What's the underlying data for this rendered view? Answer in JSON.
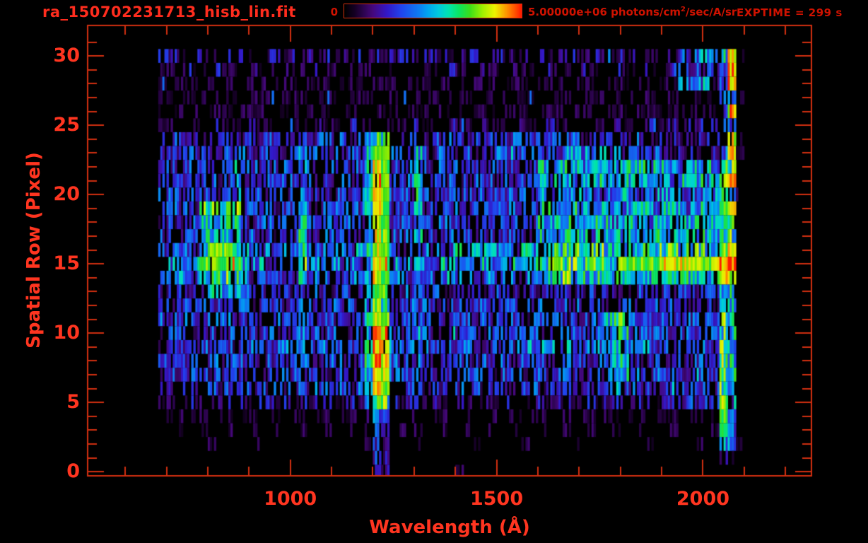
{
  "title": "ra_150702231713_hisb_lin.fit",
  "colors": {
    "background": "#000000",
    "title_text": "#ff2d1e",
    "label_text": "#cf1200",
    "tick_text": "#ff3520",
    "axis_line": "#d22f10"
  },
  "colorbar": {
    "min_label": "0",
    "max_label_prefix": "5.00000e+06 photons/cm",
    "max_label_sup": "2",
    "max_label_suffix": "/sec/A/sr",
    "exptime": "EXPTIME = 299 s"
  },
  "chart_data": {
    "type": "heatmap",
    "title": "ra_150702231713_hisb_lin.fit",
    "xlabel": "Wavelength (Å)",
    "ylabel": "Spatial Row (Pixel)",
    "legend_position": "top-colorbar",
    "grid_lines": false,
    "value_scale": {
      "min": 0,
      "max": 5000000,
      "units": "photons/cm2/sec/A/sr",
      "digit_scale": "0-9 maps 0..5e6 (linear)"
    },
    "x_axis": {
      "lambda_min": 509,
      "lambda_max": 2263,
      "major_ticks": [
        1000,
        1500,
        2000
      ],
      "major_tick_labels": [
        "1000",
        "1500",
        "2000"
      ],
      "minor_tick_step": 100,
      "minor_tick_min": 600,
      "minor_tick_max": 2200
    },
    "y_axis": {
      "row_min": -0.3,
      "row_max": 32.2,
      "major_ticks": [
        0,
        5,
        10,
        15,
        20,
        25,
        30
      ],
      "major_tick_labels": [
        "0",
        "5",
        "10",
        "15",
        "20",
        "25",
        "30"
      ],
      "minor_tick_step": 1,
      "minor_tick_min": 0,
      "minor_tick_max": 31
    },
    "colormap_stops": [
      [
        0.0,
        "#000000"
      ],
      [
        0.06,
        "#160026"
      ],
      [
        0.16,
        "#46087c"
      ],
      [
        0.24,
        "#3318c8"
      ],
      [
        0.32,
        "#2144ee"
      ],
      [
        0.42,
        "#0d7cf2"
      ],
      [
        0.47,
        "#00a4f0"
      ],
      [
        0.53,
        "#00c9e0"
      ],
      [
        0.59,
        "#00e4ae"
      ],
      [
        0.65,
        "#0ce45e"
      ],
      [
        0.71,
        "#3cdf1a"
      ],
      [
        0.78,
        "#9ef000"
      ],
      [
        0.85,
        "#eef200"
      ],
      [
        0.92,
        "#ff9000"
      ],
      [
        0.97,
        "#ff4a00"
      ],
      [
        1.0,
        "#ff1a00"
      ]
    ],
    "features": [
      "bright Lyman-alpha emission column near 1200-1230 A, rows 5-24, orange/red core",
      "secondary emission columns near 1020 A, 1300 A and 1790 A",
      "bright continuum band rows 14-16 from 1600-2080 A, yellow/orange near 2000 A",
      "saturated green/red detector edge column near 2050-2080 A",
      "sparse violet noise rows 25-30 and rows 0-4"
    ],
    "grid": {
      "lambda_start": 680,
      "bin_width": 20,
      "n_bins": 72,
      "n_rows": 31,
      "row_order": "top_to_bottom_rows_30_to_0",
      "rows_top_to_bottom": [
        [
          "222122212221",
          "222122212221",
          "222122212221",
          "222122212221",
          "222122212221",
          "222444435810"
        ],
        [
          "110211021102",
          "110211021102",
          "110211021102",
          "110211021102",
          "110211021102",
          "113333323900"
        ],
        [
          "101110111011",
          "101110111011",
          "101110111011",
          "101110111011",
          "101110111011",
          "111444424900"
        ],
        [
          "110111011101",
          "110111011101",
          "110111011101",
          "110111011101",
          "110111011101",
          "111111123410"
        ],
        [
          "101110111011",
          "101110111011",
          "101110111011",
          "101110111011",
          "101110111011",
          "111111113800"
        ],
        [
          "110211021102",
          "110211021102",
          "110211021102",
          "110211021102",
          "110211021102",
          "122222223400"
        ],
        [
          "22322",
          "23232",
          "2323232",
          "3",
          "2332323",
          "4",
          "6",
          "6",
          "323",
          "4",
          "2323",
          "32323",
          "3333333333",
          "222322232",
          "22222222",
          "3",
          "8",
          "1",
          "0"
        ],
        [
          "23232",
          "33233",
          "3233323",
          "4",
          "3323233",
          "5",
          "7",
          "7",
          "333",
          "5",
          "3233",
          "33233",
          "444344434443444",
          "33333",
          "2222222",
          "4",
          "8",
          "1",
          "0"
        ],
        [
          "23233",
          "3233",
          "5",
          "3323332",
          "4",
          "3233323",
          "5",
          "8",
          "7",
          "333",
          "4",
          "323332333",
          "33333",
          "5455545554555455545554",
          "6",
          "6",
          "00"
        ],
        [
          "32332",
          "3323",
          "5",
          "2333233",
          "4",
          "3332333",
          "5",
          "9",
          "7",
          "333",
          "5",
          "233323332",
          "33333",
          "5455455554554555455545",
          "6",
          "9",
          "00"
        ],
        [
          "23323",
          "3233",
          "4",
          "3233323",
          "5",
          "3323333",
          "5",
          "9",
          "7",
          "333",
          "5",
          "323333233",
          "33333",
          "444444444",
          "55",
          "44444444444",
          "5",
          "5",
          "10"
        ],
        [
          "23332",
          "66666",
          "3333233",
          "5",
          "3233333",
          "5",
          "9",
          "7",
          "333",
          "5",
          "233332333",
          "33333",
          "5545554555455545554555",
          "7",
          "8",
          "00"
        ],
        [
          "23233",
          "55555",
          "3233332",
          "5",
          "3332333",
          "5",
          "8",
          "7",
          "333",
          "5",
          "323333233",
          "33333",
          "5455545554555455455545",
          "6",
          "6",
          "00"
        ],
        [
          "33233",
          "55555",
          "2333233",
          "5",
          "3233332",
          "5",
          "8",
          "7",
          "333",
          "5",
          "233323333",
          "33333",
          "5545554555455554555455",
          "6",
          "6",
          "00"
        ],
        [
          "34343",
          "67776",
          "4434343",
          "5",
          "4344434",
          "5",
          "8",
          "7",
          "434",
          "4",
          "4344",
          "54545",
          "45454",
          "6566656665666566656665",
          "7",
          "8",
          "00"
        ],
        [
          "34434",
          "77777",
          "4443434",
          "6",
          "4434443",
          "5",
          "8",
          "7",
          "434",
          "4",
          "4454",
          "45454",
          "54545",
          "6676667666",
          "77777",
          "8888878",
          "9",
          "9",
          "00"
        ],
        [
          "33433",
          "66666",
          "4343433",
          "6",
          "3434343",
          "5",
          "8",
          "7",
          "343",
          "3",
          "3434",
          "43434",
          "34343",
          "5556555655",
          "55555",
          "5555555",
          "8",
          "8",
          "00"
        ],
        [
          "22322",
          "25555",
          "5232232",
          "3",
          "2322322",
          "4",
          "7",
          "7",
          "323",
          "3",
          "2322",
          "23223",
          "32232",
          "2232223222",
          "22322",
          "3233233",
          "5",
          "5",
          "00"
        ],
        [
          "23233",
          "33323",
          "3233323",
          "4",
          "3323332",
          "4",
          "7",
          "6",
          "333",
          "3",
          "3233",
          "32333",
          "23332",
          "3233323332",
          "33233",
          "3323332",
          "5",
          "5",
          "00"
        ],
        [
          "32333",
          "23332",
          "3332333",
          "4",
          "3233233",
          "5",
          "8",
          "7",
          "333",
          "3",
          "3323",
          "33233",
          "33323",
          "3332333356",
          "63333",
          "3323333",
          "6",
          "5",
          "00"
        ],
        [
          "23332",
          "33233",
          "3333233",
          "4",
          "3333323",
          "5",
          "9",
          "8",
          "433",
          "4",
          "3334",
          "33323",
          "43333",
          "3333333345",
          "53333",
          "3233333",
          "6",
          "5",
          "00"
        ],
        [
          "23333",
          "33332",
          "3433343",
          "4",
          "3343334",
          "5",
          "9",
          "8",
          "434",
          "4",
          "3433",
          "34333",
          "33344",
          "4444444455",
          "54443",
          "3333233",
          "6",
          "5",
          "00"
        ],
        [
          "32333",
          "23333",
          "3323333",
          "4",
          "3233323",
          "5",
          "9",
          "8",
          "433",
          "4",
          "3233",
          "33233",
          "33233",
          "3323332345",
          "53233",
          "2332323",
          "6",
          "5",
          "00"
        ],
        [
          "23233",
          "32333",
          "2333233",
          "3",
          "3323333",
          "5",
          "8",
          "8",
          "333",
          "4",
          "3323",
          "23332",
          "33323",
          "3233233345",
          "53323",
          "3333433",
          "6",
          "5",
          "00"
        ],
        [
          "22322",
          "23232",
          "3232332",
          "3",
          "2332323",
          "4",
          "8",
          "7",
          "323",
          "3",
          "2323",
          "32323",
          "23233",
          "2323232334",
          "43232",
          "3433343",
          "6",
          "4",
          "00"
        ],
        [
          "12212",
          "21221",
          "2122122",
          "2",
          "1221221",
          "3",
          "6",
          "6",
          "212",
          "2",
          "1212",
          "21221",
          "12212",
          "2122122122",
          "21221",
          "3233233",
          "6",
          "4",
          "00"
        ],
        [
          "01101",
          "10110",
          "1101101",
          "1",
          "0110110",
          "2",
          "4",
          "3",
          "101",
          "1",
          "0110",
          "11011",
          "01101",
          "1011011011",
          "01101",
          "1101101",
          "7",
          "3",
          "00"
        ],
        [
          "00100",
          "10010",
          "0100100",
          "1",
          "0010010",
          "1",
          "3",
          "3",
          "010",
          "1",
          "0010",
          "01001",
          "00100",
          "1001001001",
          "00100",
          "0100101",
          "7",
          "3",
          "00"
        ],
        [
          "00000",
          "01000",
          "0010000",
          "0",
          "0100000",
          "1",
          "3",
          "2",
          "000",
          "1",
          "0000",
          "00100",
          "00010",
          "0000100000",
          "00010",
          "0000100",
          "4",
          "4",
          "10"
        ],
        [
          "00000",
          "00000",
          "0000000",
          "0",
          "0000000",
          "0",
          "3",
          "2",
          "000",
          "1",
          "0000",
          "00000",
          "00000",
          "0000000000",
          "00000",
          "0000000",
          "2",
          "1",
          "00"
        ],
        [
          "00000",
          "00000",
          "0000000",
          "0",
          "0000000",
          "0",
          "2",
          "2",
          "000",
          "0",
          "0000",
          "10000",
          "00000",
          "0000000000",
          "00000",
          "0000000",
          "0",
          "0",
          "00"
        ]
      ]
    }
  }
}
